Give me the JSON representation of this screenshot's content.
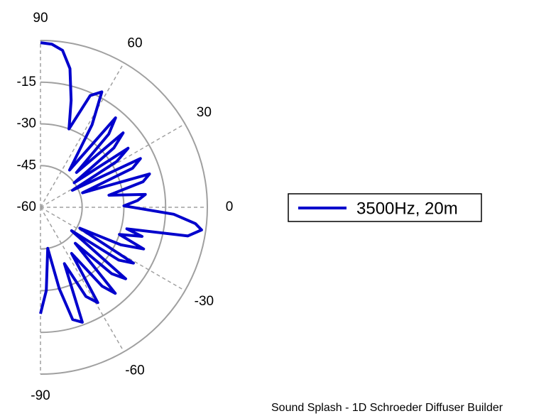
{
  "chart_data": {
    "type": "polar",
    "footer": "Sound Splash - 1D Schroeder Diffuser Builder",
    "rlim": [
      -60,
      0
    ],
    "rticks": [
      -60,
      -45,
      -30,
      -15
    ],
    "thetalim": [
      -90,
      90
    ],
    "thetaticks": [
      -90,
      -60,
      -30,
      0,
      30,
      60,
      90
    ],
    "series": [
      {
        "name": "3500Hz, 20m",
        "color": "#0000cc",
        "x": [
          90,
          86,
          82,
          78,
          74,
          70,
          66,
          62,
          58,
          52,
          50,
          47,
          44,
          42,
          39,
          36,
          34,
          31,
          28,
          26,
          23,
          19,
          17,
          14,
          10,
          7,
          4,
          1,
          -3,
          -6,
          -8,
          -11,
          -14,
          -16,
          -19,
          -22,
          -25,
          -28,
          -31,
          -34,
          -37,
          -40,
          -43,
          -46,
          -49,
          -52,
          -56,
          -59,
          -63,
          -67,
          -70,
          -74,
          -77,
          -80,
          -83,
          -86,
          -90
        ],
        "values": [
          -0.8,
          -1.2,
          -3,
          -9,
          -20,
          -30,
          -16,
          -13,
          -25,
          -43,
          -18,
          -24,
          -42,
          -20,
          -26,
          -45,
          -22,
          -28,
          -47,
          -20,
          -24,
          -44,
          -19,
          -22,
          -35,
          -22,
          -25,
          -30,
          -12,
          -4,
          -1.5,
          -6,
          -28,
          -22,
          -30,
          -20,
          -28,
          -44,
          -21,
          -26,
          -46,
          -20,
          -25,
          -42,
          -19,
          -24,
          -40,
          -20,
          -24,
          -38,
          -16,
          -18,
          -30,
          -45,
          -40,
          -30,
          -21.7
        ]
      }
    ],
    "legend": "right"
  }
}
